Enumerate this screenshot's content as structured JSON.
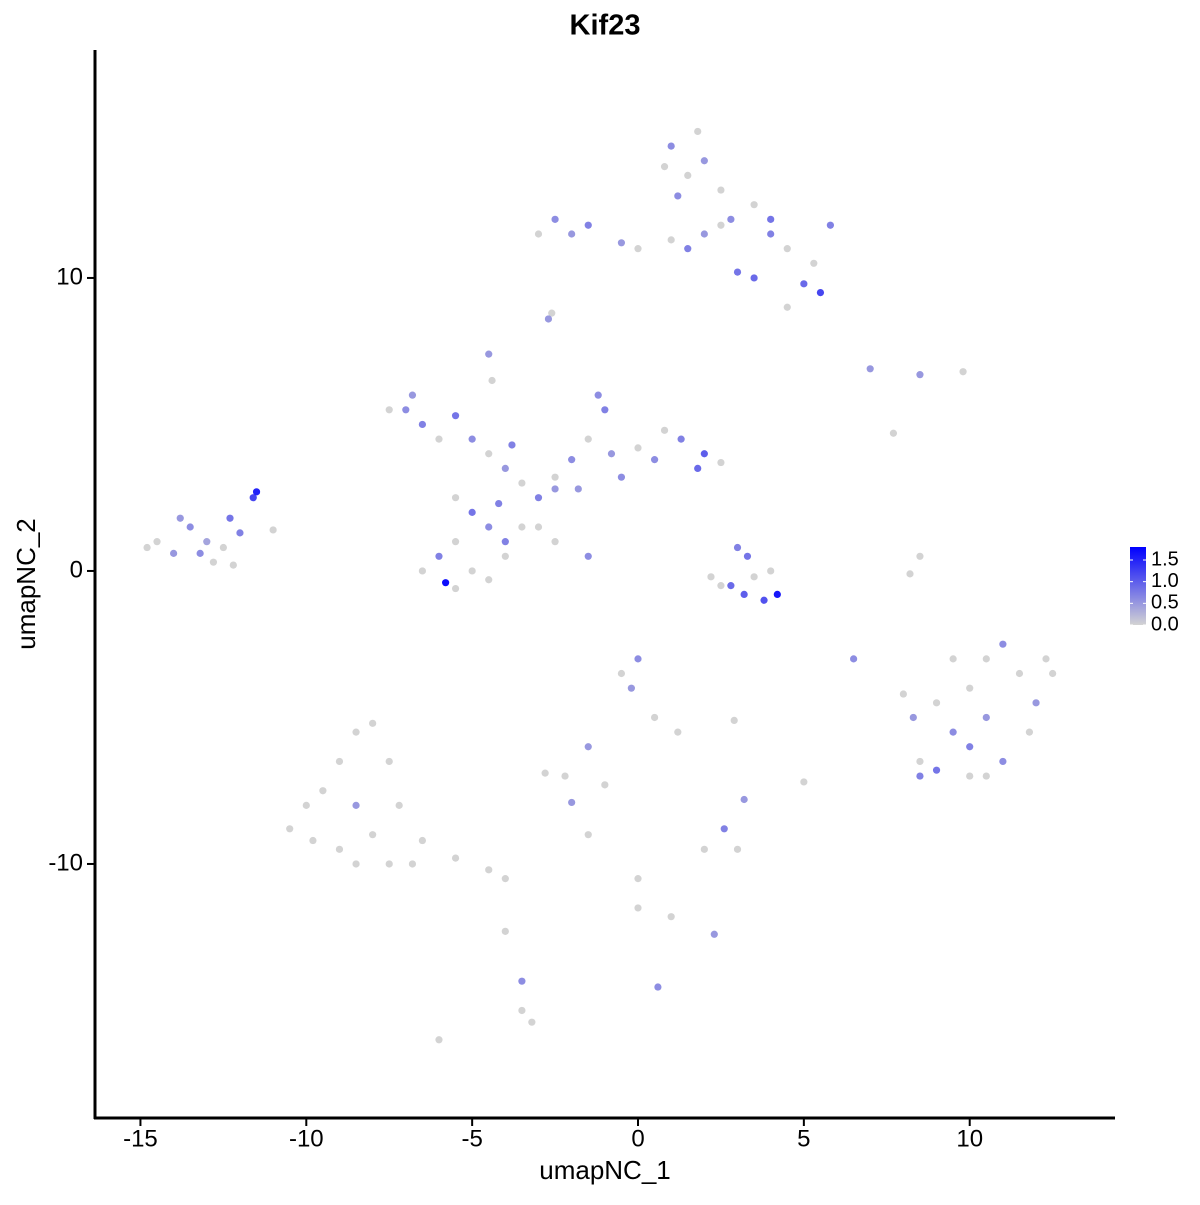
{
  "chart_data": {
    "type": "scatter",
    "title": "Kif23",
    "x_label": "umapNC_1",
    "y_label": "umapNC_2",
    "x": [
      -14.5,
      -14,
      -13.5,
      -13,
      -12.5,
      -12,
      -11.5,
      -11.6,
      -12.8,
      -13.8,
      -11,
      -12.3,
      -14.8,
      -13.2,
      -12.2,
      -7,
      -6.5,
      -6,
      -5.5,
      -5,
      -4.5,
      -4,
      -3.5,
      -3,
      -2.5,
      -2,
      -1.5,
      -1,
      -0.8,
      0,
      0.5,
      1.3,
      2,
      2.5,
      1.8,
      -1.2,
      -5.5,
      -5,
      -4.5,
      -5.5,
      -6,
      -5.8,
      -5,
      -4.5,
      -4,
      -3.5,
      -4,
      -3,
      -2.5,
      -1.5,
      -6.5,
      -5.5,
      -4.2,
      -4.5,
      -4.4,
      -2.5,
      -7.5,
      -6.8,
      -3.8,
      -1.8,
      0.8,
      -0.5,
      2.8,
      3.2,
      3.8,
      4.2,
      3.0,
      3.3,
      2.5,
      4,
      3.5,
      2.2,
      -3,
      -2.5,
      -2,
      -1.5,
      -0.5,
      0,
      1,
      1.5,
      2,
      2.5,
      3,
      3.5,
      4,
      4.5,
      5,
      5.5,
      5.8,
      5.3,
      4.5,
      1,
      1.5,
      2,
      1.2,
      2.5,
      2.8,
      3.5,
      0.8,
      -2.7,
      -2.6,
      4,
      1.8,
      8,
      8.3,
      8.5,
      8.5,
      9,
      9.5,
      10,
      10.5,
      11,
      11.5,
      12,
      12.5,
      11,
      10.5,
      10,
      9,
      11.8,
      10.5,
      9.5,
      12.3,
      10,
      -10.5,
      -10,
      -9.5,
      -9,
      -8.5,
      -8,
      -7.5,
      -7.2,
      -8,
      -9,
      -8.5,
      -7.5,
      -6.5,
      -5.5,
      -4.5,
      -4,
      -8.5,
      -9.8,
      -6.8,
      -0.5,
      -0.2,
      0,
      0.5,
      1.2,
      -1.5,
      -2.8,
      -2.2,
      -1,
      2.6,
      2.0,
      3,
      3.2,
      5,
      0,
      0,
      1,
      2.3,
      -3.5,
      -3.5,
      -3.2,
      -6,
      0.6,
      -4,
      6.5,
      2.9,
      8.5,
      8.2,
      7,
      8.5,
      9.8,
      7.7,
      -2,
      -1.5
    ],
    "y": [
      1.0,
      0.6,
      1.5,
      1.0,
      0.8,
      1.3,
      2.7,
      2.5,
      0.3,
      1.8,
      1.4,
      1.8,
      0.8,
      0.6,
      0.2,
      5.5,
      5.0,
      4.5,
      5.3,
      4.5,
      4.0,
      3.5,
      3.0,
      2.5,
      3.2,
      3.8,
      4.5,
      5.5,
      4.0,
      4.2,
      3.8,
      4.5,
      4.0,
      3.7,
      3.5,
      6.0,
      2.5,
      2.0,
      1.5,
      1.0,
      0.5,
      -0.4,
      0,
      -0.3,
      0.5,
      1.5,
      1.0,
      1.5,
      1.0,
      0.5,
      0,
      -0.6,
      2.3,
      7.4,
      6.5,
      2.8,
      5.5,
      6.0,
      4.3,
      2.8,
      4.8,
      3.2,
      -0.5,
      -0.8,
      -1.0,
      -0.8,
      0.8,
      0.5,
      -0.5,
      0,
      -0.2,
      -0.2,
      11.5,
      12,
      11.5,
      11.8,
      11.2,
      11,
      11.3,
      11.0,
      11.5,
      11.8,
      10.2,
      10,
      11.5,
      11,
      9.8,
      9.5,
      11.8,
      10.5,
      9.0,
      14.5,
      13.5,
      14.0,
      12.8,
      13,
      12.0,
      12.5,
      13.8,
      8.6,
      8.8,
      12.0,
      15.0,
      -4.2,
      -5,
      -6.5,
      -7,
      -6.8,
      -5.5,
      -4,
      -3,
      -2.5,
      -3.5,
      -4.5,
      -3.5,
      -6.5,
      -7,
      -6,
      -4.5,
      -5.5,
      -5,
      -3,
      -3,
      -7,
      -8.8,
      -8,
      -7.5,
      -6.5,
      -5.5,
      -5.2,
      -6.5,
      -8,
      -9,
      -9.5,
      -10,
      -10,
      -9.2,
      -9.8,
      -10.2,
      -10.5,
      -8,
      -9.2,
      -10,
      -3.5,
      -4,
      -3,
      -5,
      -5.5,
      -6,
      -6.9,
      -7,
      -7.3,
      -8.8,
      -9.5,
      -9.5,
      -7.8,
      -7.2,
      -10.5,
      -11.5,
      -11.8,
      -12.4,
      -14.0,
      -15,
      -15.4,
      -16,
      -14.2,
      -12.3,
      -3,
      -5.1,
      0.5,
      -0.1,
      6.9,
      6.7,
      6.8,
      4.7,
      -7.9,
      -9
    ],
    "values": [
      0,
      0.5,
      0.6,
      0.4,
      0,
      0.7,
      1.5,
      1.2,
      0,
      0.5,
      0,
      0.8,
      0,
      0.6,
      0,
      0.6,
      0.7,
      0,
      0.8,
      0.6,
      0,
      0.5,
      0,
      0.7,
      0,
      0.6,
      0,
      0.7,
      0.5,
      0,
      0.6,
      0.7,
      1.0,
      0,
      0.9,
      0.6,
      0,
      0.8,
      0.6,
      0,
      0.7,
      1.7,
      0,
      0,
      0,
      0,
      0.7,
      0,
      0,
      0.6,
      0,
      0,
      0.7,
      0.5,
      0,
      0.5,
      0,
      0.5,
      0.7,
      0.5,
      0,
      0.6,
      0.9,
      1.0,
      1.1,
      1.6,
      0.7,
      0.8,
      0,
      0,
      0,
      0,
      0,
      0.6,
      0.5,
      0.7,
      0.5,
      0,
      0,
      0.7,
      0.5,
      0,
      0.8,
      0.9,
      0.7,
      0,
      0.9,
      1.2,
      0.7,
      0,
      0,
      0.6,
      0,
      0.5,
      0.6,
      0,
      0.6,
      0,
      0,
      0.5,
      0,
      0.8,
      0,
      0,
      0.5,
      0,
      0.7,
      0.8,
      0.6,
      0,
      0,
      0.6,
      0,
      0.5,
      0,
      0.6,
      0,
      0.7,
      0,
      0,
      0.5,
      0,
      0,
      0,
      0,
      0,
      0,
      0,
      0,
      0,
      0,
      0,
      0,
      0,
      0,
      0,
      0,
      0,
      0,
      0,
      0.5,
      0,
      0,
      0,
      0.5,
      0.6,
      0,
      0,
      0.5,
      0,
      0,
      0,
      0.7,
      0,
      0,
      0.5,
      0,
      0,
      0,
      0,
      0.5,
      0.6,
      0,
      0,
      0,
      0.6,
      0,
      0.6,
      0,
      0,
      0,
      0.5,
      0.5,
      0,
      0,
      0.5,
      0
    ],
    "xlim": [
      -16.37,
      14.38
    ],
    "ylim": [
      -18.67,
      17.78
    ],
    "xticks": [
      -15,
      -10,
      -5,
      0,
      5,
      10
    ],
    "yticks": [
      -10,
      0,
      10
    ],
    "color_low": "#d3d3d3",
    "color_high": "#0000ff",
    "colorbar": {
      "lim": [
        0,
        1.8
      ],
      "ticks": [
        {
          "value": 0,
          "label": "0.0"
        },
        0.5,
        {
          "value": 1,
          "label": "1.0"
        },
        1.5
      ]
    }
  }
}
